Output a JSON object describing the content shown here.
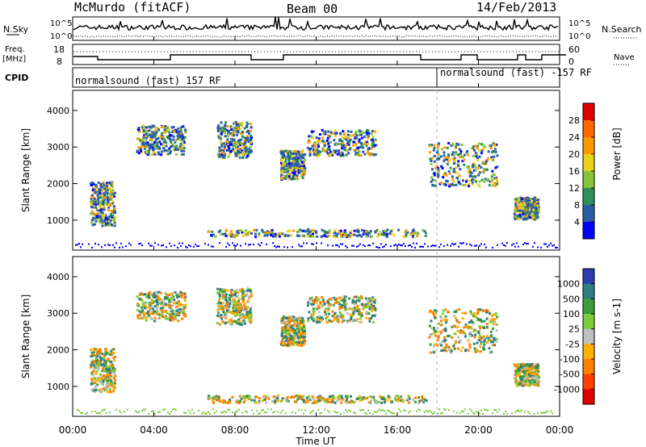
{
  "header": {
    "station": "McMurdo (fitACF)",
    "beam": "Beam 00",
    "date": "14/Feb/2013"
  },
  "noise_panel": {
    "left_label": "N.Sky",
    "right_label": "N.Search",
    "left_ticks": [
      "10^5",
      "10^0"
    ],
    "right_ticks": [
      "10^5",
      "10^0"
    ]
  },
  "freq_panel": {
    "left_label_1": "Freq.",
    "left_label_2": "[MHz]",
    "left_ticks": [
      "18",
      "8"
    ],
    "right_label": "Nave",
    "right_ticks": [
      "60",
      "0"
    ]
  },
  "cpid_panel": {
    "label": "CPID",
    "segments": [
      "normalsound (fast) 157 RF",
      "normalsound (fast) -157 RF"
    ]
  },
  "chart_data": [
    {
      "type": "heatmap",
      "title": "",
      "ylabel": "Slant Range [km]",
      "ylim": [
        180,
        4550
      ],
      "yticks": [
        "4000",
        "3000",
        "2000",
        "1000"
      ],
      "colorbar_label": "Power [dB]",
      "colorbar_ticks": [
        "28",
        "24",
        "20",
        "16",
        "12",
        "8",
        "4"
      ],
      "colorbar_colors": [
        "#e00000",
        "#ff6a00",
        "#ff9900",
        "#e8d21a",
        "#88c43a",
        "#2f8f5a",
        "#2a5ca8",
        "#0000ff"
      ]
    },
    {
      "type": "heatmap",
      "title": "",
      "ylabel": "Slant Range [km]",
      "ylim": [
        180,
        4550
      ],
      "yticks": [
        "4000",
        "3000",
        "2000",
        "1000"
      ],
      "colorbar_label": "Velocity [m s-1]",
      "colorbar_ticks": [
        "1000",
        "500",
        "100",
        "25",
        "-25",
        "-100",
        "-500",
        "-1000"
      ],
      "colorbar_colors": [
        "#2b3fb0",
        "#2f7f80",
        "#3c9b3c",
        "#7ccd3a",
        "#bfbfbf",
        "#ffb000",
        "#ff8000",
        "#ff4000",
        "#e00000"
      ]
    }
  ],
  "x_axis": {
    "label": "Time UT",
    "ticks": [
      "00:00",
      "04:00",
      "08:00",
      "12:00",
      "16:00",
      "20:00",
      "00:00"
    ]
  }
}
